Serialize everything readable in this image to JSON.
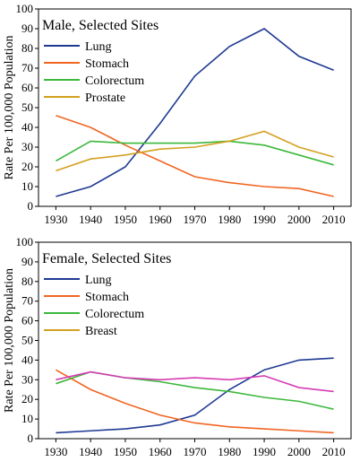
{
  "chart_data": [
    {
      "type": "line",
      "title": "Male, Selected Sites",
      "ylabel": "Rate Per 100,000 Population",
      "xlabel": "",
      "ylim": [
        0,
        100
      ],
      "xlim": [
        1925,
        2015
      ],
      "x": [
        1930,
        1940,
        1950,
        1960,
        1970,
        1980,
        1990,
        2000,
        2010
      ],
      "x_ticks": [
        "1930",
        "1940",
        "1950",
        "1960",
        "1970",
        "1980",
        "1990",
        "2000",
        "2010"
      ],
      "y_ticks": [
        "0",
        "10",
        "20",
        "30",
        "40",
        "50",
        "60",
        "70",
        "80",
        "90",
        "100"
      ],
      "legend_position": "top-left",
      "grid": false,
      "series": [
        {
          "name": "Lung",
          "color": "#1f3a93",
          "values": [
            5,
            10,
            20,
            42,
            66,
            81,
            90,
            76,
            69
          ]
        },
        {
          "name": "Stomach",
          "color": "#f26522",
          "values": [
            46,
            40,
            31,
            23,
            15,
            12,
            10,
            9,
            5
          ]
        },
        {
          "name": "Colorectum",
          "color": "#3cb83c",
          "values": [
            23,
            33,
            32,
            32,
            32,
            33,
            31,
            26,
            21
          ]
        },
        {
          "name": "Prostate",
          "color": "#d4a020",
          "values": [
            18,
            24,
            26,
            29,
            30,
            33,
            38,
            30,
            25
          ]
        }
      ]
    },
    {
      "type": "line",
      "title": "Female, Selected Sites",
      "ylabel": "Rate Per 100,000 Population",
      "xlabel": "",
      "ylim": [
        0,
        100
      ],
      "xlim": [
        1925,
        2015
      ],
      "x": [
        1930,
        1940,
        1950,
        1960,
        1970,
        1980,
        1990,
        2000,
        2010
      ],
      "x_ticks": [
        "1930",
        "1940",
        "1950",
        "1960",
        "1970",
        "1980",
        "1990",
        "2000",
        "2010"
      ],
      "y_ticks": [
        "0",
        "10",
        "20",
        "30",
        "40",
        "50",
        "60",
        "70",
        "80",
        "90",
        "100"
      ],
      "legend_position": "top-left",
      "grid": false,
      "series": [
        {
          "name": "Lung",
          "color": "#1f3a93",
          "values": [
            3,
            4,
            5,
            7,
            12,
            25,
            35,
            40,
            41
          ]
        },
        {
          "name": "Stomach",
          "color": "#f26522",
          "values": [
            35,
            25,
            18,
            12,
            8,
            6,
            5,
            4,
            3
          ]
        },
        {
          "name": "Colorectum",
          "color": "#3cb83c",
          "values": [
            28,
            34,
            31,
            29,
            26,
            24,
            21,
            19,
            15
          ]
        },
        {
          "name": "Breast",
          "color": "#d4a020",
          "values": [
            30,
            34,
            31,
            30,
            31,
            30,
            32,
            26,
            24
          ]
        }
      ],
      "unlabeled_series": [
        {
          "color": "#d63cb4",
          "values": [
            30,
            34,
            31,
            30,
            31,
            30,
            32,
            26,
            24
          ]
        }
      ]
    }
  ]
}
